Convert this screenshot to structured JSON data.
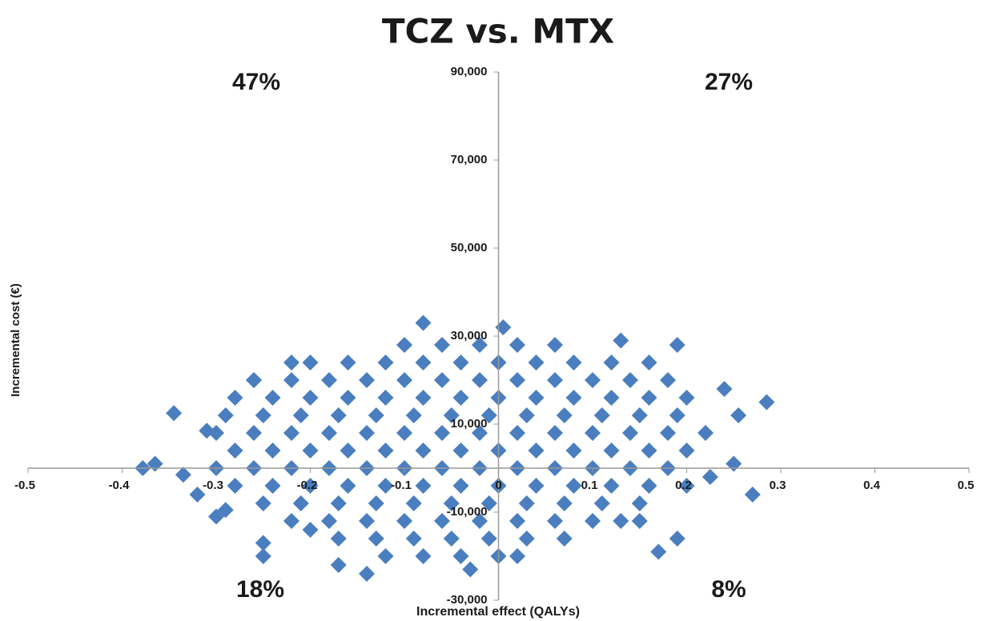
{
  "chart_data": {
    "type": "scatter",
    "title": "TCZ vs. MTX",
    "x_label": "Incremental effect (QALYs)",
    "y_label": "Incremental cost (€)",
    "quadrant_labels": [
      "47%",
      "27%",
      "18%",
      "8%"
    ],
    "color": "#4a7ebf",
    "xlim": [
      -0.5,
      0.5
    ],
    "xticks": [
      -0.5,
      -0.4,
      -0.3,
      -0.2,
      -0.1,
      0,
      0.1,
      0.2,
      0.3,
      0.4,
      0.5
    ],
    "ylim": [
      -30000,
      90000
    ],
    "yticks": [
      {
        "value": 90000,
        "label": "90,000"
      },
      {
        "value": 70000,
        "label": "70,000"
      },
      {
        "value": 50000,
        "label": "50,000"
      },
      {
        "value": 30000,
        "label": "30,000"
      },
      {
        "value": 10000,
        "label": "10,000"
      },
      {
        "value": -10000,
        "label": "-10,000"
      },
      {
        "value": -30000,
        "label": "-30,000"
      }
    ],
    "x": [
      -0.1,
      -0.06,
      -0.02,
      0.02,
      0.06,
      -0.2,
      -0.16,
      -0.12,
      -0.08,
      -0.04,
      0.0,
      0.04,
      0.08,
      0.12,
      0.16,
      -0.26,
      -0.22,
      -0.18,
      -0.14,
      -0.1,
      -0.06,
      -0.02,
      0.02,
      0.06,
      0.1,
      0.14,
      0.18,
      -0.28,
      -0.24,
      -0.2,
      -0.16,
      -0.12,
      -0.08,
      -0.04,
      0.0,
      0.04,
      0.08,
      0.12,
      0.16,
      0.2,
      -0.29,
      -0.25,
      -0.21,
      -0.17,
      -0.13,
      -0.09,
      -0.05,
      -0.01,
      0.03,
      0.07,
      0.11,
      0.15,
      0.19,
      -0.3,
      -0.26,
      -0.22,
      -0.18,
      -0.14,
      -0.1,
      -0.06,
      -0.02,
      0.02,
      0.06,
      0.1,
      0.14,
      0.18,
      0.22,
      -0.28,
      -0.24,
      -0.2,
      -0.16,
      -0.12,
      -0.08,
      -0.04,
      0.0,
      0.04,
      0.08,
      0.12,
      0.16,
      0.2,
      -0.3,
      -0.26,
      -0.22,
      -0.18,
      -0.14,
      -0.1,
      -0.06,
      -0.02,
      0.02,
      0.06,
      0.1,
      0.14,
      0.18,
      -0.28,
      -0.24,
      -0.2,
      -0.16,
      -0.12,
      -0.08,
      -0.04,
      0.0,
      0.04,
      0.08,
      0.12,
      0.16,
      0.2,
      -0.25,
      -0.21,
      -0.17,
      -0.13,
      -0.09,
      -0.05,
      -0.01,
      0.03,
      0.07,
      0.11,
      0.15,
      -0.22,
      -0.18,
      -0.14,
      -0.1,
      -0.06,
      -0.02,
      0.02,
      0.06,
      0.1,
      0.13,
      -0.17,
      -0.13,
      -0.09,
      -0.05,
      -0.01,
      0.03,
      0.07,
      -0.12,
      -0.08,
      -0.04,
      0.0,
      -0.378,
      -0.365,
      -0.345,
      -0.335,
      -0.32,
      -0.31,
      -0.3,
      -0.29,
      -0.26,
      -0.25,
      -0.25,
      -0.22,
      -0.08,
      0.005,
      0.13,
      0.19,
      0.24,
      0.255,
      0.285,
      0.27,
      0.25,
      0.225,
      0.17,
      0.19,
      -0.14,
      -0.03,
      0.02,
      -0.17,
      0.15,
      -0.2
    ],
    "y": [
      28000,
      28000,
      28000,
      28000,
      28000,
      24000,
      24000,
      24000,
      24000,
      24000,
      24000,
      24000,
      24000,
      24000,
      24000,
      20000,
      20000,
      20000,
      20000,
      20000,
      20000,
      20000,
      20000,
      20000,
      20000,
      20000,
      20000,
      16000,
      16000,
      16000,
      16000,
      16000,
      16000,
      16000,
      16000,
      16000,
      16000,
      16000,
      16000,
      16000,
      12000,
      12000,
      12000,
      12000,
      12000,
      12000,
      12000,
      12000,
      12000,
      12000,
      12000,
      12000,
      12000,
      8000,
      8000,
      8000,
      8000,
      8000,
      8000,
      8000,
      8000,
      8000,
      8000,
      8000,
      8000,
      8000,
      8000,
      4000,
      4000,
      4000,
      4000,
      4000,
      4000,
      4000,
      4000,
      4000,
      4000,
      4000,
      4000,
      4000,
      0,
      0,
      0,
      0,
      0,
      0,
      0,
      0,
      0,
      0,
      0,
      0,
      0,
      -4000,
      -4000,
      -4000,
      -4000,
      -4000,
      -4000,
      -4000,
      -4000,
      -4000,
      -4000,
      -4000,
      -4000,
      -4000,
      -8000,
      -8000,
      -8000,
      -8000,
      -8000,
      -8000,
      -8000,
      -8000,
      -8000,
      -8000,
      -8000,
      -12000,
      -12000,
      -12000,
      -12000,
      -12000,
      -12000,
      -12000,
      -12000,
      -12000,
      -12000,
      -16000,
      -16000,
      -16000,
      -16000,
      -16000,
      -16000,
      -16000,
      -20000,
      -20000,
      -20000,
      -20000,
      0,
      1000,
      12500,
      -1500,
      -6000,
      8500,
      -11000,
      -9500,
      20000,
      -17000,
      -20000,
      24000,
      33000,
      32000,
      29000,
      28000,
      18000,
      12000,
      15000,
      -6000,
      1000,
      -2000,
      -19000,
      -16000,
      -24000,
      -23000,
      -20000,
      -22000,
      -12000,
      -14000
    ]
  }
}
